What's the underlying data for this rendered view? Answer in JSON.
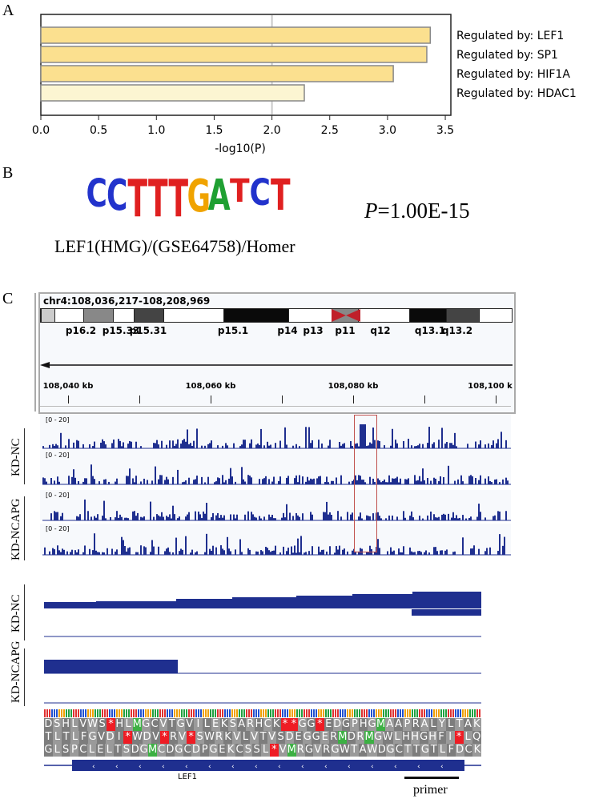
{
  "panels": {
    "a": "A",
    "b": "B",
    "c": "C"
  },
  "chart_data": {
    "type": "bar",
    "orientation": "horizontal",
    "categories": [
      "Regulated by: LEF1",
      "Regulated by: SP1",
      "Regulated by: HIF1A",
      "Regulated by: HDAC1"
    ],
    "values": [
      3.37,
      3.34,
      3.05,
      2.28
    ],
    "xlabel": "-log10(P)",
    "xlim": [
      0,
      3.55
    ],
    "xticks": [
      "0.0",
      "0.5",
      "1.0",
      "1.5",
      "2.0",
      "2.5",
      "3.0",
      "3.5"
    ],
    "threshold": 2.0,
    "colors": {
      "strong": "#fbe08f",
      "weak": "#fcf5d2",
      "edge": "#888888",
      "threshold": "#c8c8c8"
    }
  },
  "motif": {
    "sequence": "CCTTTGATCT",
    "name": "LEF1(HMG)/(GSE64758)/Homer",
    "p_label": "P",
    "p_value": "=1.00E-15"
  },
  "igv": {
    "locus": "chr4:108,036,217-108,208,969",
    "bands": [
      "p16.2",
      "p15.33",
      "p15.31",
      "p15.1",
      "p14",
      "p13",
      "p11",
      "q12",
      "q13.1",
      "q13.2"
    ],
    "ruler": [
      "108,040 kb",
      "108,060 kb",
      "108,080 kb",
      "108,100 k"
    ],
    "range": "[0 - 20]",
    "groups": [
      "KD-NC",
      "KD-NCAPG"
    ],
    "track_color": "#1f2f8f",
    "highlight_color": "#c0504d"
  },
  "lower": {
    "groups": [
      "KD-NC",
      "KD-NCAPG"
    ]
  },
  "sequence": {
    "rows": [
      "DSHLVWS*HLMGCVTGVILEKSARHCK**GG*EDGPHGMAAPRALYLTAK",
      "TLTLFGVDI*WDV*RV*SWRKVLVTVSDEGGERMDRMGWLHHGHFI*LQ",
      "GLSPCLELTSDGMCDGCDPGEKCSSL*VMRGVRGWTAWDGCTTGTLFDCK"
    ],
    "gene": "LEF1",
    "primer": "primer"
  }
}
